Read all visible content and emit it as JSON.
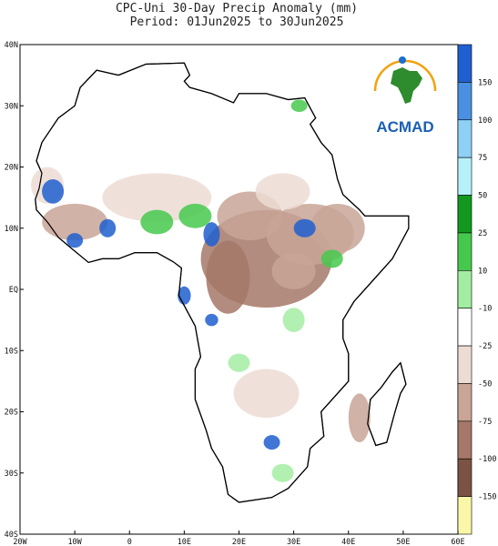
{
  "header": {
    "title": "CPC-Uni 30-Day Precip Anomaly (mm)",
    "subtitle": "Period: 01Jun2025 to 30Jun2025"
  },
  "map": {
    "x_labels": [
      "20W",
      "10W",
      "0",
      "10E",
      "20E",
      "30E",
      "40E",
      "50E",
      "60E"
    ],
    "y_labels": [
      "40N",
      "30N",
      "20N",
      "10N",
      "EQ",
      "10S",
      "20S",
      "30S",
      "40S"
    ]
  },
  "legend": {
    "levels": [
      150,
      100,
      75,
      50,
      25,
      10,
      -10,
      -25,
      -50,
      -75,
      -100,
      -150
    ],
    "colors": [
      "#1f5fcf",
      "#4a90e2",
      "#8fd0f5",
      "#b6f1fa",
      "#13981f",
      "#45c94d",
      "#a3eda3",
      "#ffffff",
      "#ecdcd4",
      "#c8a596",
      "#a57869",
      "#7c5244",
      "#fbf7a8"
    ]
  },
  "logo": {
    "text": "ACMAD"
  }
}
